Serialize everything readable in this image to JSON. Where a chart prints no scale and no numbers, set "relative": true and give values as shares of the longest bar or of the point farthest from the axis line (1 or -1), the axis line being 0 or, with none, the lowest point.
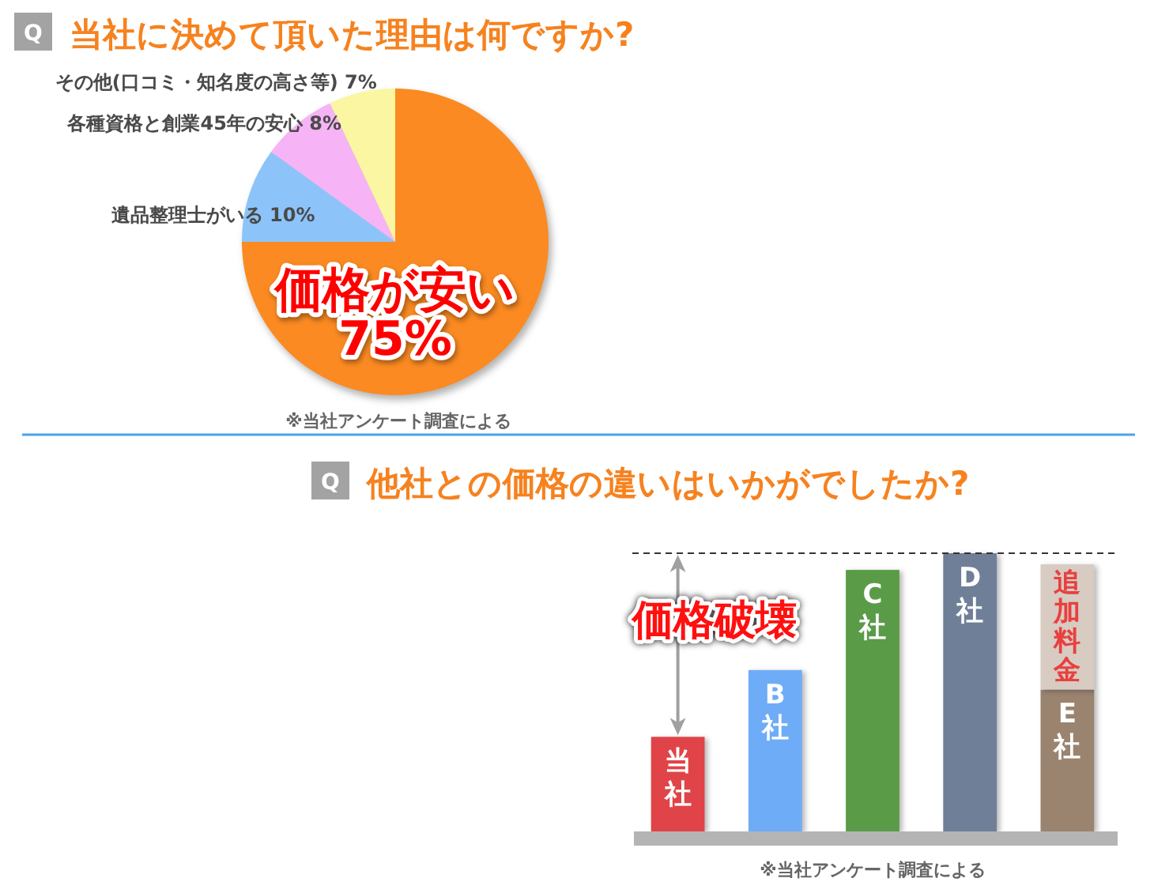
{
  "chart_data": [
    {
      "type": "pie",
      "title": "当社に決めて頂いた理由は何ですか?",
      "categories": [
        "価格が安い",
        "遺品整理士がいる",
        "各種資格と創業45年の安心",
        "その他(口コミ・知名度の高さ等)"
      ],
      "values": [
        75,
        10,
        8,
        7
      ],
      "value_labels": [
        "75%",
        "10%",
        "8%",
        "7%"
      ],
      "colors": [
        "#fb8a22",
        "#8cc4fa",
        "#f6b4f6",
        "#faf6a2"
      ],
      "annotations": [
        "Q",
        "※当社アンケート調査による"
      ]
    },
    {
      "type": "bar",
      "title": "他社との価格の違いはいかがでしたか?",
      "categories": [
        "当社",
        "B社",
        "C社",
        "D社",
        "E社"
      ],
      "relative": true,
      "stacked": true,
      "series": [
        {
          "colors": [
            "#e04448",
            "#6eacf8",
            "#5a9b48",
            "#6f7f98",
            "#9a8470"
          ],
          "values": [
            0.34,
            0.58,
            0.94,
            1,
            0.51
          ]
        },
        {
          "name": "追加料金",
          "color": "#d8cbc2",
          "values": [
            null,
            null,
            null,
            null,
            0.45
          ]
        }
      ],
      "ref_lines": [
        {
          "axis": "y",
          "value": 1,
          "color": "#333333",
          "line_style": "dashed"
        }
      ],
      "annotations": [
        "Q",
        "価格破壊",
        "※当社アンケート調査による"
      ]
    }
  ]
}
